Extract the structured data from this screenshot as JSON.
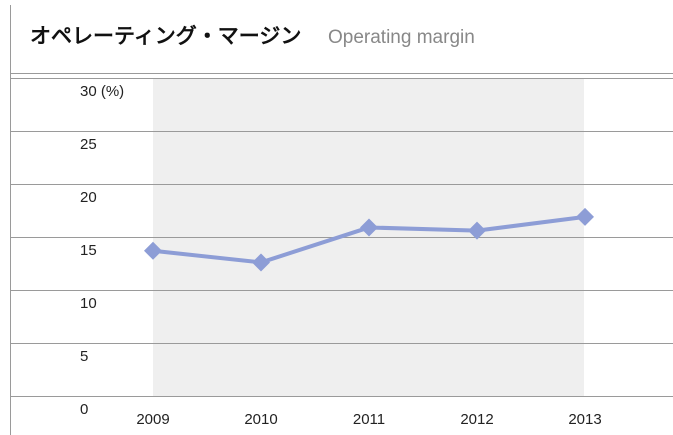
{
  "chart_data": {
    "type": "line",
    "title": "オペレーティング・マージン",
    "subtitle": "Operating margin",
    "categories": [
      "2009",
      "2010",
      "2011",
      "2012",
      "2013"
    ],
    "values": [
      13.7,
      12.6,
      15.9,
      15.6,
      16.9
    ],
    "color": "#8d9dd6",
    "ylim": [
      0,
      30
    ],
    "yticks": [
      0,
      5,
      10,
      15,
      20,
      25,
      {
        "value": 30,
        "label": "30 (%)"
      }
    ],
    "grid": true
  }
}
